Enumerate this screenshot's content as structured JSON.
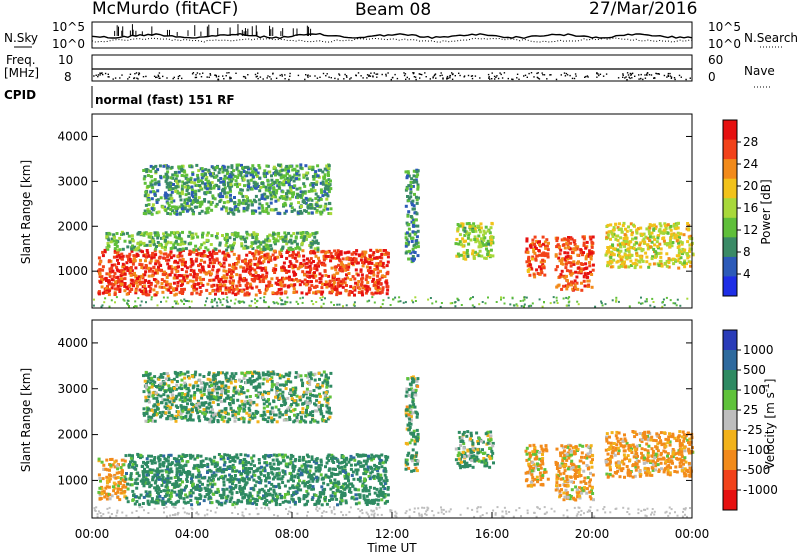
{
  "header": {
    "radar": "McMurdo (fitACF)",
    "beam": "Beam 08",
    "date": "27/Mar/2016"
  },
  "status_panels": {
    "nsky_label": "N.Sky",
    "nsearch_label": "N.Search",
    "noise_ticks": [
      "10^5",
      "10^0"
    ],
    "freq_label": "Freq.",
    "freq_unit": "[MHz]",
    "freq_ticks": [
      "10",
      "8"
    ],
    "nave_label": "Nave",
    "nave_ticks": [
      "60",
      "0"
    ],
    "cpid_label": "CPID",
    "cpid_text": "normal (fast) 151 RF"
  },
  "chart_data": [
    {
      "type": "heatmap",
      "name": "power",
      "ylabel": "Slant Range [km]",
      "xlabel": "",
      "y_ticks": [
        "1000",
        "2000",
        "3000",
        "4000"
      ],
      "x_range_hours": [
        0,
        24
      ],
      "y_range_km": [
        180,
        4500
      ],
      "colorbar": {
        "label": "Power [dB]",
        "ticks": [
          "4",
          "8",
          "12",
          "16",
          "20",
          "24",
          "28"
        ],
        "range": [
          0,
          30
        ],
        "colors": [
          "#1e2ee6",
          "#2c5ab8",
          "#3a8a66",
          "#5fbf3a",
          "#a8d83a",
          "#f2c21a",
          "#f28a1a",
          "#f2421a",
          "#e61010"
        ]
      },
      "echo_regions": [
        {
          "t": [
            0.2,
            11.8
          ],
          "r": [
            500,
            1500
          ],
          "level": 27
        },
        {
          "t": [
            0.5,
            9.0
          ],
          "r": [
            1500,
            1900
          ],
          "level": 11
        },
        {
          "t": [
            2.0,
            9.5
          ],
          "r": [
            2300,
            3400
          ],
          "level": 9
        },
        {
          "t": [
            12.5,
            13.0
          ],
          "r": [
            1200,
            3300
          ],
          "level": 8
        },
        {
          "t": [
            14.5,
            16.0
          ],
          "r": [
            1300,
            2100
          ],
          "level": 14
        },
        {
          "t": [
            17.3,
            18.2
          ],
          "r": [
            900,
            1800
          ],
          "level": 25
        },
        {
          "t": [
            18.5,
            20.0
          ],
          "r": [
            600,
            1800
          ],
          "level": 26
        },
        {
          "t": [
            20.5,
            24.0
          ],
          "r": [
            1100,
            2100
          ],
          "level": 17
        }
      ]
    },
    {
      "type": "heatmap",
      "name": "velocity",
      "ylabel": "Slant Range [km]",
      "xlabel": "Time UT",
      "x_ticks": [
        "00:00",
        "04:00",
        "08:00",
        "12:00",
        "16:00",
        "20:00",
        "00:00"
      ],
      "y_ticks": [
        "1000",
        "2000",
        "3000",
        "4000"
      ],
      "x_range_hours": [
        0,
        24
      ],
      "y_range_km": [
        180,
        4500
      ],
      "colorbar": {
        "label": "Velocity [m s",
        "label_sup": "-1",
        "label_end": "]",
        "ticks": [
          "1000",
          "500",
          "100",
          "25",
          "-25",
          "-100",
          "-500",
          "-1000"
        ],
        "colors": [
          "#2a3cb8",
          "#2e6a9e",
          "#2e8a62",
          "#5fc23a",
          "#bebebe",
          "#f2b21a",
          "#f28a1a",
          "#f2421a",
          "#e61010"
        ]
      },
      "echo_regions": [
        {
          "t": [
            0.2,
            1.3
          ],
          "r": [
            600,
            1500
          ],
          "velocity": -150
        },
        {
          "t": [
            1.3,
            11.8
          ],
          "r": [
            500,
            1600
          ],
          "velocity": 300
        },
        {
          "t": [
            2.0,
            9.5
          ],
          "r": [
            2300,
            3400
          ],
          "velocity": 150
        },
        {
          "t": [
            12.5,
            13.0
          ],
          "r": [
            1200,
            3300
          ],
          "velocity": 120
        },
        {
          "t": [
            14.5,
            16.0
          ],
          "r": [
            1300,
            2100
          ],
          "velocity": 150
        },
        {
          "t": [
            17.3,
            18.2
          ],
          "r": [
            900,
            1800
          ],
          "velocity": -150
        },
        {
          "t": [
            18.5,
            20.0
          ],
          "r": [
            600,
            1800
          ],
          "velocity": -150
        },
        {
          "t": [
            20.5,
            24.0
          ],
          "r": [
            1100,
            2100
          ],
          "velocity": -180
        }
      ]
    }
  ]
}
